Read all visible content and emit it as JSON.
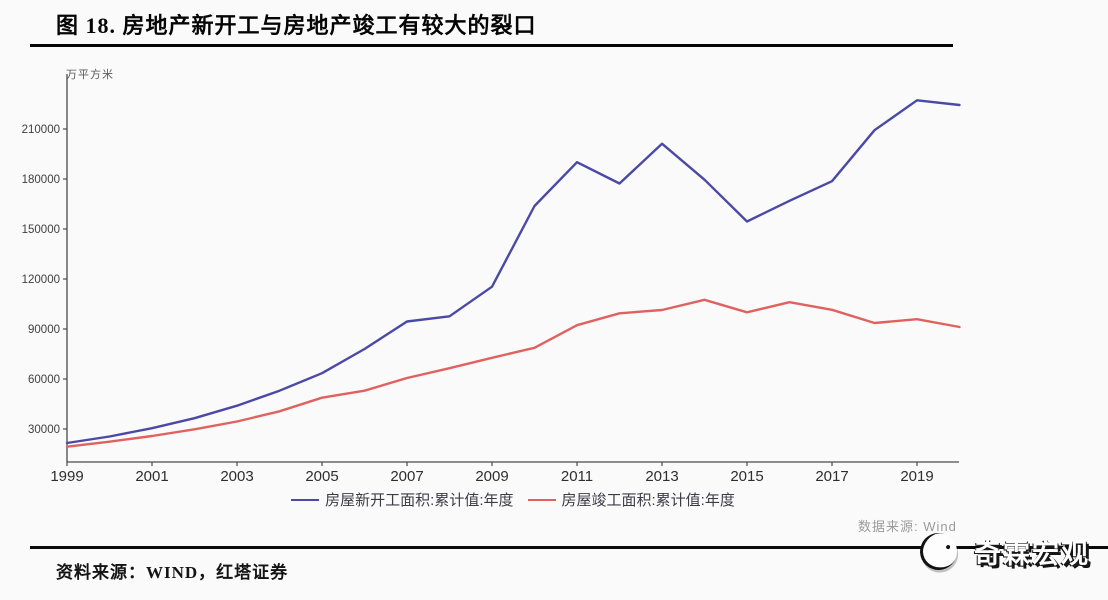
{
  "title": "图 18. 房地产新开工与房地产竣工有较大的裂口",
  "footer": {
    "source_text": "资料来源：WIND，红塔证券"
  },
  "watermark_text": "数据来源: Wind",
  "logo": {
    "text": "奇霖宏观",
    "icon": "qilin-circle-icon"
  },
  "colors": {
    "new_starts_line": "#4a4aa6",
    "completions_line": "#e06260",
    "axis": "#4a4a4a",
    "rule": "#050505"
  },
  "chart_data": {
    "type": "line",
    "title": "",
    "unit_label": "万平方米",
    "xlabel": "",
    "ylabel": "万平方米",
    "x": [
      1999,
      2000,
      2001,
      2002,
      2003,
      2004,
      2005,
      2006,
      2007,
      2008,
      2009,
      2010,
      2011,
      2012,
      2013,
      2014,
      2015,
      2016,
      2017,
      2018,
      2019,
      2020
    ],
    "x_tick_labels": [
      "1999",
      "2001",
      "2003",
      "2005",
      "2007",
      "2009",
      "2011",
      "2013",
      "2015",
      "2017",
      "2019"
    ],
    "y_tick_values": [
      30000,
      60000,
      90000,
      120000,
      150000,
      180000,
      210000
    ],
    "ylim": [
      10000,
      240000
    ],
    "grid": false,
    "legend_position": "bottom",
    "series": [
      {
        "name": "房屋新开工面积:累计值:年度",
        "color": "#4a4aa6",
        "values": [
          21600,
          25500,
          30500,
          36500,
          44000,
          53000,
          63500,
          78000,
          94500,
          97600,
          115400,
          163800,
          190100,
          177300,
          201200,
          179600,
          154500,
          166900,
          178700,
          209300,
          227200,
          224400
        ]
      },
      {
        "name": "房屋竣工面积:累计值:年度",
        "color": "#e06260",
        "values": [
          19400,
          22400,
          25800,
          29800,
          34500,
          40600,
          48800,
          53000,
          60600,
          66500,
          72700,
          78700,
          92300,
          99400,
          101400,
          107500,
          100000,
          106100,
          101500,
          93600,
          95900,
          91200
        ]
      }
    ]
  }
}
